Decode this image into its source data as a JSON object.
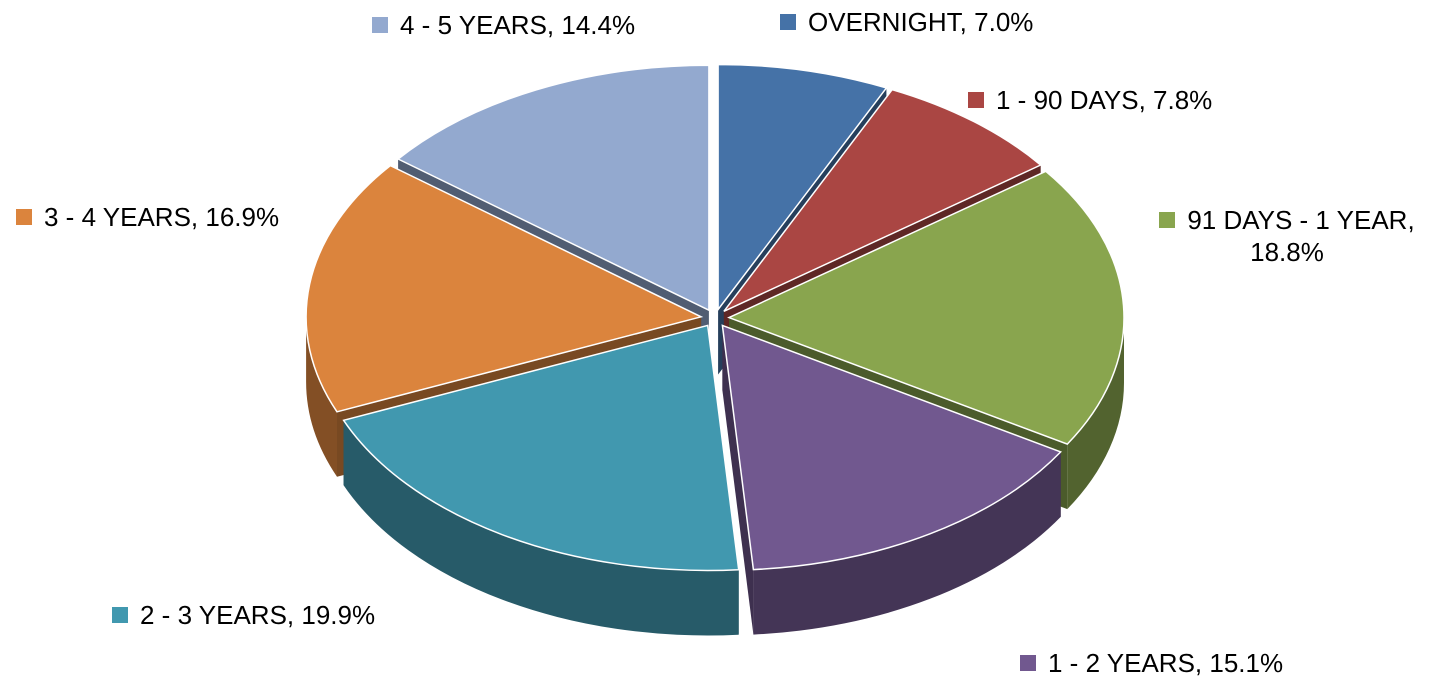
{
  "chart_data": {
    "type": "pie",
    "values": [
      7.0,
      7.8,
      18.8,
      15.1,
      19.9,
      16.9,
      14.4
    ],
    "value_labels": [
      "OVERNIGHT, 7.0%",
      "1 - 90 DAYS, 7.8%",
      "91 DAYS - 1 YEAR, 18.8%",
      "1 - 2 YEARS, 15.1%",
      "2 - 3 YEARS, 19.9%",
      "3 - 4 YEARS, 16.9%",
      "4 - 5 YEARS, 14.4%"
    ],
    "colors": [
      "#4572a7",
      "#aa4643",
      "#89a54e",
      "#71588f",
      "#4198af",
      "#db843d",
      "#93a9cf"
    ]
  }
}
